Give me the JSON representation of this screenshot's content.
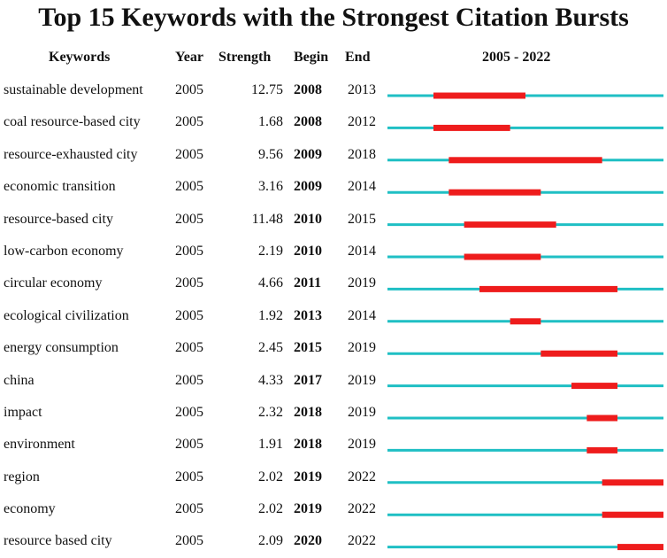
{
  "chart_data": {
    "type": "table",
    "title": "Top 15 Keywords with the Strongest Citation Bursts",
    "headers": {
      "keywords": "Keywords",
      "year": "Year",
      "strength": "Strength",
      "begin": "Begin",
      "end": "End",
      "range": "2005 - 2022"
    },
    "range": [
      2005,
      2022
    ],
    "colors": {
      "timeline": "#1fbfc4",
      "burst": "#ee1c1c"
    },
    "rows": [
      {
        "keyword": "sustainable development",
        "year": "2005",
        "strength": "12.75",
        "begin": "2008",
        "end": "2013"
      },
      {
        "keyword": "coal resource-based city",
        "year": "2005",
        "strength": "1.68",
        "begin": "2008",
        "end": "2012"
      },
      {
        "keyword": "resource-exhausted city",
        "year": "2005",
        "strength": "9.56",
        "begin": "2009",
        "end": "2018"
      },
      {
        "keyword": "economic transition",
        "year": "2005",
        "strength": "3.16",
        "begin": "2009",
        "end": "2014"
      },
      {
        "keyword": "resource-based city",
        "year": "2005",
        "strength": "11.48",
        "begin": "2010",
        "end": "2015"
      },
      {
        "keyword": "low-carbon economy",
        "year": "2005",
        "strength": "2.19",
        "begin": "2010",
        "end": "2014"
      },
      {
        "keyword": "circular economy",
        "year": "2005",
        "strength": "4.66",
        "begin": "2011",
        "end": "2019"
      },
      {
        "keyword": "ecological civilization",
        "year": "2005",
        "strength": "1.92",
        "begin": "2013",
        "end": "2014"
      },
      {
        "keyword": "energy consumption",
        "year": "2005",
        "strength": "2.45",
        "begin": "2015",
        "end": "2019"
      },
      {
        "keyword": "china",
        "year": "2005",
        "strength": "4.33",
        "begin": "2017",
        "end": "2019"
      },
      {
        "keyword": "impact",
        "year": "2005",
        "strength": "2.32",
        "begin": "2018",
        "end": "2019"
      },
      {
        "keyword": "environment",
        "year": "2005",
        "strength": "1.91",
        "begin": "2018",
        "end": "2019"
      },
      {
        "keyword": "region",
        "year": "2005",
        "strength": "2.02",
        "begin": "2019",
        "end": "2022"
      },
      {
        "keyword": "economy",
        "year": "2005",
        "strength": "2.02",
        "begin": "2019",
        "end": "2022"
      },
      {
        "keyword": "resource based city",
        "year": "2005",
        "strength": "2.09",
        "begin": "2020",
        "end": "2022"
      }
    ]
  }
}
